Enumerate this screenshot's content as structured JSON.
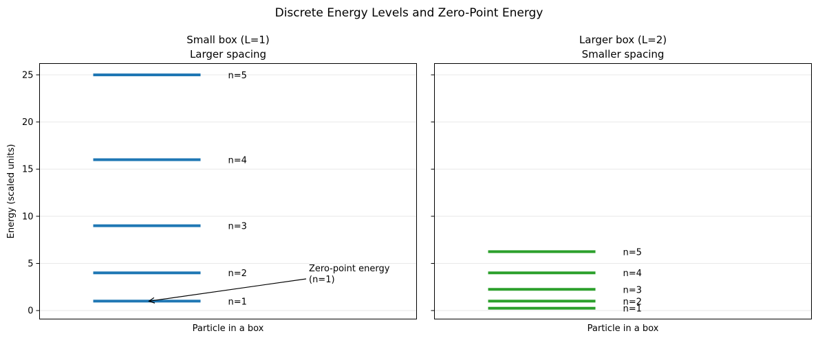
{
  "title": "Discrete Energy Levels and Zero-Point Energy",
  "chart_data": [
    {
      "type": "energy-levels",
      "title_line1": "Small box (L=1)",
      "title_line2": "Larger spacing",
      "xlabel": "Particle in a box",
      "ylabel": "Energy (scaled units)",
      "ylim": [
        -0.9,
        26.2
      ],
      "yticks": [
        "0",
        "5",
        "10",
        "15",
        "20",
        "25"
      ],
      "grid": true,
      "color": "#1f77b4",
      "levels": [
        {
          "n": 1,
          "energy": 1,
          "label": "n=1"
        },
        {
          "n": 2,
          "energy": 4,
          "label": "n=2"
        },
        {
          "n": 3,
          "energy": 9,
          "label": "n=3"
        },
        {
          "n": 4,
          "energy": 16,
          "label": "n=4"
        },
        {
          "n": 5,
          "energy": 25,
          "label": "n=5"
        }
      ],
      "annotation": {
        "line1": "Zero-point energy",
        "line2": "(n=1)",
        "points_to": "n=1"
      }
    },
    {
      "type": "energy-levels",
      "title_line1": "Larger box (L=2)",
      "title_line2": "Smaller spacing",
      "xlabel": "Particle in a box",
      "ylim": [
        -0.9,
        26.2
      ],
      "grid": true,
      "color": "#2ca02c",
      "levels": [
        {
          "n": 1,
          "energy": 0.25,
          "label": "n=1"
        },
        {
          "n": 2,
          "energy": 1.0,
          "label": "n=2"
        },
        {
          "n": 3,
          "energy": 2.25,
          "label": "n=3"
        },
        {
          "n": 4,
          "energy": 4.0,
          "label": "n=4"
        },
        {
          "n": 5,
          "energy": 6.25,
          "label": "n=5"
        }
      ]
    }
  ]
}
